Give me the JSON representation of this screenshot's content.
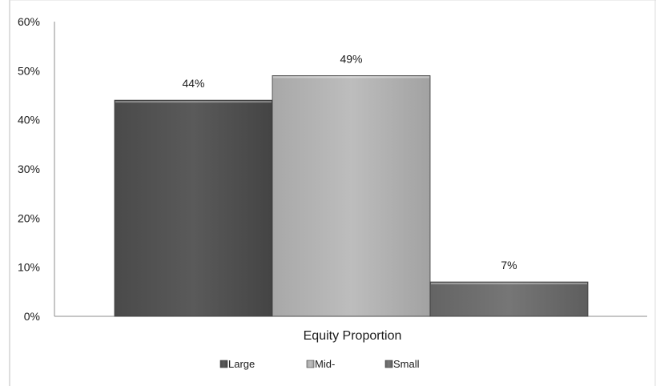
{
  "chart_data": {
    "type": "bar",
    "categories": [
      "Equity Proportion"
    ],
    "series": [
      {
        "name": "Large",
        "values": [
          44
        ],
        "color": "#555555",
        "label": "44%"
      },
      {
        "name": "Mid-",
        "values": [
          49
        ],
        "color": "#b5b5b5",
        "label": "49%"
      },
      {
        "name": "Small",
        "values": [
          7
        ],
        "color": "#6e6e6e",
        "label": "7%"
      }
    ],
    "ylim": [
      0,
      60
    ],
    "yticks": [
      {
        "value": 0,
        "label": "0%"
      },
      {
        "value": 10,
        "label": "10%"
      },
      {
        "value": 20,
        "label": "20%"
      },
      {
        "value": 30,
        "label": "30%"
      },
      {
        "value": 40,
        "label": "40%"
      },
      {
        "value": 50,
        "label": "50%"
      },
      {
        "value": 60,
        "label": "60%"
      }
    ],
    "xlabel": "",
    "ylabel": "",
    "title": "",
    "grid": false,
    "legend_position": "bottom"
  }
}
